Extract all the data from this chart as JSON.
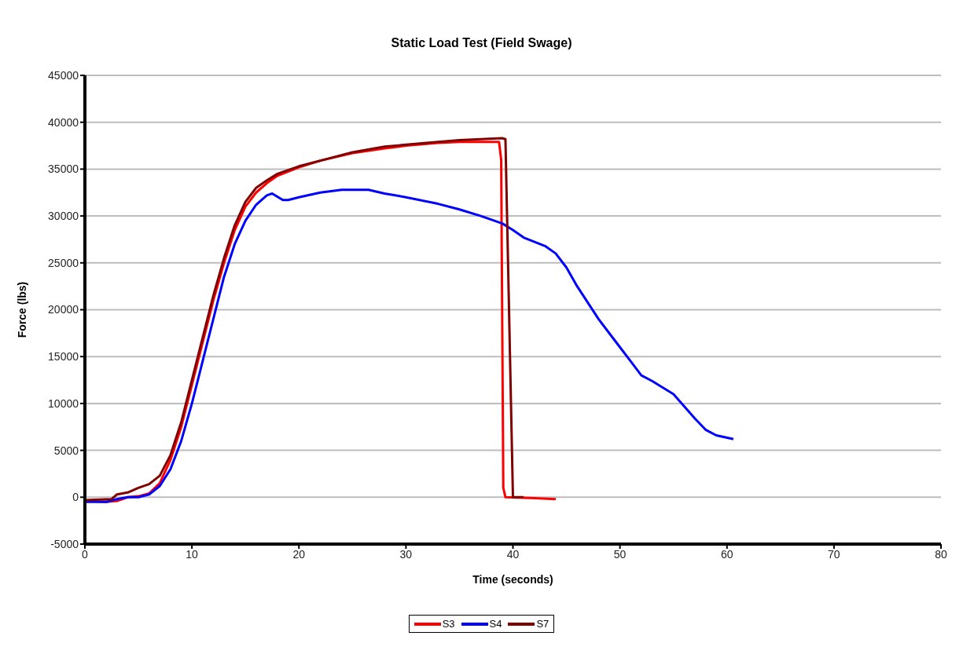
{
  "chart_data": {
    "type": "line",
    "title": "Static Load Test (Field Swage)",
    "xlabel": "Time (seconds)",
    "ylabel": "Force (lbs)",
    "xlim": [
      0,
      80
    ],
    "xticks": [
      0,
      10,
      20,
      30,
      40,
      50,
      60,
      70,
      80
    ],
    "ylim": [
      -5000,
      45000
    ],
    "yticks": [
      -5000,
      0,
      5000,
      10000,
      15000,
      20000,
      25000,
      30000,
      35000,
      40000,
      45000
    ],
    "grid": "y",
    "legend": "bottom",
    "marker": "none",
    "line_style": "solid",
    "series": [
      {
        "name": "S3",
        "color": "#ff0000",
        "x": [
          0,
          2,
          3,
          4,
          5,
          6,
          7,
          8,
          9,
          10,
          11,
          12,
          13,
          14,
          15,
          16,
          17,
          18,
          20,
          22,
          25,
          28,
          30,
          33,
          35,
          38.7,
          38.9,
          39.1,
          39.3,
          42,
          44
        ],
        "values": [
          -400,
          -500,
          -400,
          0,
          100,
          400,
          1500,
          4000,
          7500,
          12000,
          16500,
          21000,
          25000,
          28500,
          31000,
          32500,
          33500,
          34300,
          35200,
          35900,
          36700,
          37200,
          37500,
          37800,
          37900,
          37900,
          36000,
          1000,
          0,
          -100,
          -200
        ]
      },
      {
        "name": "S4",
        "color": "#0000ff",
        "x": [
          0,
          2,
          3,
          4,
          5,
          6,
          7,
          8,
          9,
          10,
          11,
          12,
          13,
          14,
          15,
          16,
          17,
          17.5,
          18.5,
          19,
          20,
          22,
          24,
          26.5,
          28,
          30,
          33,
          35,
          37,
          39,
          40,
          41,
          43,
          44,
          45,
          46,
          48,
          50,
          51,
          52,
          53,
          55,
          56,
          57,
          58,
          59,
          60.6
        ],
        "values": [
          -500,
          -500,
          -200,
          0,
          0,
          300,
          1200,
          3000,
          6000,
          10000,
          14500,
          19000,
          23500,
          27000,
          29500,
          31200,
          32200,
          32400,
          31700,
          31700,
          32000,
          32500,
          32800,
          32800,
          32400,
          32000,
          31300,
          30700,
          30000,
          29200,
          28500,
          27700,
          26800,
          26000,
          24500,
          22500,
          19000,
          16000,
          14500,
          13000,
          12400,
          11000,
          9700,
          8400,
          7200,
          6600,
          6200
        ]
      },
      {
        "name": "S7",
        "color": "#800000",
        "x": [
          0,
          2.5,
          3,
          4,
          5,
          6,
          7,
          8,
          9,
          10,
          11,
          12,
          13,
          14,
          15,
          16,
          17,
          18,
          20,
          22,
          25,
          28,
          30,
          33,
          35,
          37,
          39,
          39.3,
          40,
          41
        ],
        "values": [
          -300,
          -200,
          300,
          500,
          1000,
          1400,
          2300,
          4500,
          8000,
          12500,
          17000,
          21500,
          25500,
          29000,
          31500,
          33000,
          33800,
          34500,
          35300,
          35900,
          36800,
          37400,
          37600,
          37900,
          38100,
          38200,
          38300,
          38200,
          0,
          0
        ]
      }
    ]
  }
}
